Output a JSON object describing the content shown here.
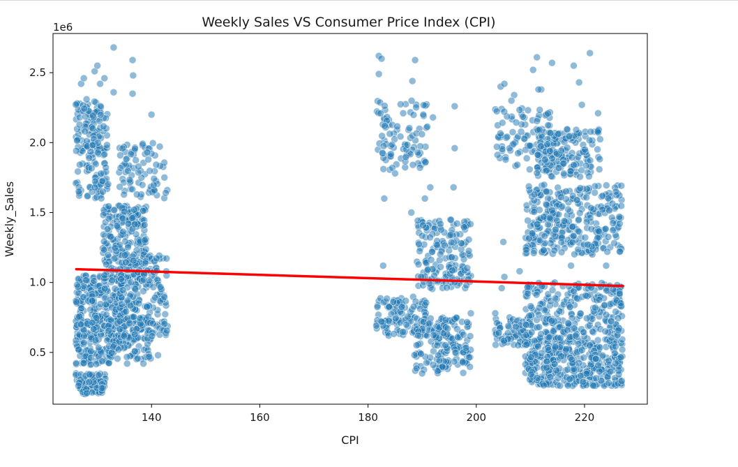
{
  "chart_data": {
    "type": "scatter",
    "title": "Weekly Sales VS Consumer Price Index (CPI)",
    "xlabel": "CPI",
    "ylabel": "Weekly_Sales",
    "y_offset_label": "1e6",
    "xlim": [
      121.8,
      231.6
    ],
    "ylim": [
      0.13,
      2.78
    ],
    "xticks": [
      140,
      160,
      180,
      200,
      220
    ],
    "xtick_labels": [
      "140",
      "160",
      "180",
      "200",
      "220"
    ],
    "yticks": [
      0.5,
      1.0,
      1.5,
      2.0,
      2.5
    ],
    "ytick_labels": [
      "0.5",
      "1.0",
      "1.5",
      "2.0",
      "2.5"
    ],
    "grid": false,
    "legend": "none",
    "series": [
      {
        "kind": "points",
        "color": "#1f77b4",
        "alpha": 0.5,
        "clusters": [
          {
            "x_range": [
              126,
              131.5
            ],
            "y_range": [
              0.2,
              0.35
            ],
            "count": 90
          },
          {
            "x_range": [
              126,
              133
            ],
            "y_range": [
              0.4,
              0.65
            ],
            "count": 110
          },
          {
            "x_range": [
              126,
              135
            ],
            "y_range": [
              0.65,
              1.05
            ],
            "count": 230
          },
          {
            "x_range": [
              126,
              132
            ],
            "y_range": [
              1.6,
              2.3
            ],
            "count": 170
          },
          {
            "x_range": [
              131,
              139
            ],
            "y_range": [
              1.0,
              1.55
            ],
            "count": 230
          },
          {
            "x_range": [
              132,
              140
            ],
            "y_range": [
              0.45,
              0.75
            ],
            "count": 110
          },
          {
            "x_range": [
              134,
              143
            ],
            "y_range": [
              0.6,
              1.2
            ],
            "count": 200
          },
          {
            "x_range": [
              134,
              143
            ],
            "y_range": [
              1.6,
              2.0
            ],
            "count": 80
          },
          {
            "x_range": [
              181.5,
              191
            ],
            "y_range": [
              0.62,
              0.9
            ],
            "count": 110
          },
          {
            "x_range": [
              181.5,
              191
            ],
            "y_range": [
              1.8,
              2.3
            ],
            "count": 90
          },
          {
            "x_range": [
              188.5,
              199
            ],
            "y_range": [
              0.35,
              0.75
            ],
            "count": 180
          },
          {
            "x_range": [
              189,
              199
            ],
            "y_range": [
              0.95,
              1.45
            ],
            "count": 170
          },
          {
            "x_range": [
              203.5,
              210
            ],
            "y_range": [
              0.55,
              0.75
            ],
            "count": 80
          },
          {
            "x_range": [
              203.5,
              214
            ],
            "y_range": [
              1.8,
              2.25
            ],
            "count": 90
          },
          {
            "x_range": [
              209,
              227
            ],
            "y_range": [
              0.26,
              0.6
            ],
            "count": 380
          },
          {
            "x_range": [
              209,
              227
            ],
            "y_range": [
              0.6,
              1.0
            ],
            "count": 260
          },
          {
            "x_range": [
              209,
              227
            ],
            "y_range": [
              1.2,
              1.7
            ],
            "count": 320
          },
          {
            "x_range": [
              211,
              223
            ],
            "y_range": [
              1.75,
              2.1
            ],
            "count": 160
          }
        ],
        "outliers": [
          [
            127,
            2.42
          ],
          [
            127.5,
            2.46
          ],
          [
            128,
            2.31
          ],
          [
            129.5,
            2.51
          ],
          [
            130,
            2.55
          ],
          [
            130.5,
            2.42
          ],
          [
            131.3,
            2.46
          ],
          [
            133,
            2.68
          ],
          [
            133,
            2.36
          ],
          [
            136.5,
            2.59
          ],
          [
            136.6,
            2.48
          ],
          [
            136.5,
            2.35
          ],
          [
            140,
            2.2
          ],
          [
            139.2,
            1.93
          ],
          [
            135.5,
            0.42
          ],
          [
            138.5,
            0.42
          ],
          [
            141.2,
            0.48
          ],
          [
            182,
            2.62
          ],
          [
            182.5,
            2.6
          ],
          [
            182,
            2.49
          ],
          [
            188.7,
            2.59
          ],
          [
            188.2,
            2.44
          ],
          [
            186.5,
            2.21
          ],
          [
            190.2,
            2.2
          ],
          [
            192,
            2.18
          ],
          [
            196,
            2.26
          ],
          [
            196,
            1.96
          ],
          [
            195.8,
            1.68
          ],
          [
            190.5,
            1.6
          ],
          [
            191.5,
            1.68
          ],
          [
            188,
            1.5
          ],
          [
            184.5,
            1.82
          ],
          [
            183,
            1.6
          ],
          [
            182.8,
            1.12
          ],
          [
            185,
            1.78
          ],
          [
            197.5,
            0.43
          ],
          [
            196,
            1.0
          ],
          [
            199,
            0.78
          ],
          [
            190,
            0.35
          ],
          [
            182.5,
            0.72
          ],
          [
            204.5,
            2.4
          ],
          [
            205.2,
            2.42
          ],
          [
            207,
            2.34
          ],
          [
            206.5,
            2.3
          ],
          [
            211.2,
            2.61
          ],
          [
            212,
            2.38
          ],
          [
            211.5,
            2.38
          ],
          [
            210.5,
            2.52
          ],
          [
            214,
            2.57
          ],
          [
            218,
            2.55
          ],
          [
            221,
            2.64
          ],
          [
            219,
            2.43
          ],
          [
            219.5,
            2.27
          ],
          [
            222.5,
            2.21
          ],
          [
            205,
            1.29
          ],
          [
            208,
            1.08
          ],
          [
            217.5,
            1.12
          ],
          [
            224,
            1.12
          ],
          [
            226.5,
            1.22
          ],
          [
            226.5,
            1.42
          ],
          [
            203.5,
            0.78
          ],
          [
            205.2,
            1.04
          ],
          [
            204.7,
            0.96
          ],
          [
            214.5,
            1.0
          ],
          [
            222,
            0.82
          ]
        ]
      },
      {
        "kind": "regression_line",
        "color": "#ff0000",
        "x": [
          126.1,
          227.1
        ],
        "y": [
          1.095,
          0.975
        ]
      }
    ]
  }
}
